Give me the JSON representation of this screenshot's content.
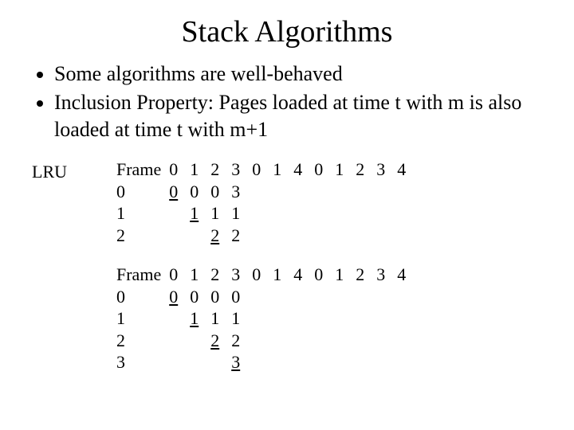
{
  "title": "Stack Algorithms",
  "bullets": [
    "Some algorithms are well-behaved",
    "Inclusion Property: Pages loaded at time t with m is also loaded at time t with m+1"
  ],
  "algoLabel": "LRU",
  "tables": [
    {
      "frameLabel": "Frame",
      "reference": [
        "0",
        "1",
        "2",
        "3",
        "0",
        "1",
        "4",
        "0",
        "1",
        "2",
        "3",
        "4"
      ],
      "rows": [
        {
          "label": "0",
          "cells": [
            {
              "v": "0",
              "u": true
            },
            {
              "v": "0"
            },
            {
              "v": "0"
            },
            {
              "v": "3"
            }
          ]
        },
        {
          "label": "1",
          "cells": [
            {
              "v": ""
            },
            {
              "v": "1",
              "u": true
            },
            {
              "v": "1"
            },
            {
              "v": "1"
            }
          ]
        },
        {
          "label": "2",
          "cells": [
            {
              "v": ""
            },
            {
              "v": ""
            },
            {
              "v": "2",
              "u": true
            },
            {
              "v": "2"
            }
          ]
        }
      ]
    },
    {
      "frameLabel": "Frame",
      "reference": [
        "0",
        "1",
        "2",
        "3",
        "0",
        "1",
        "4",
        "0",
        "1",
        "2",
        "3",
        "4"
      ],
      "rows": [
        {
          "label": "0",
          "cells": [
            {
              "v": "0",
              "u": true
            },
            {
              "v": "0"
            },
            {
              "v": "0"
            },
            {
              "v": "0"
            }
          ]
        },
        {
          "label": "1",
          "cells": [
            {
              "v": ""
            },
            {
              "v": "1",
              "u": true
            },
            {
              "v": "1"
            },
            {
              "v": "1"
            }
          ]
        },
        {
          "label": "2",
          "cells": [
            {
              "v": ""
            },
            {
              "v": ""
            },
            {
              "v": "2",
              "u": true
            },
            {
              "v": "2"
            }
          ]
        },
        {
          "label": "3",
          "cells": [
            {
              "v": ""
            },
            {
              "v": ""
            },
            {
              "v": ""
            },
            {
              "v": "3",
              "u": true
            }
          ]
        }
      ]
    }
  ],
  "colors": {
    "background": "#ffffff",
    "text": "#000000"
  },
  "fonts": {
    "family": "Times New Roman",
    "titleSize": 38,
    "bodySize": 26,
    "tableSize": 22
  }
}
